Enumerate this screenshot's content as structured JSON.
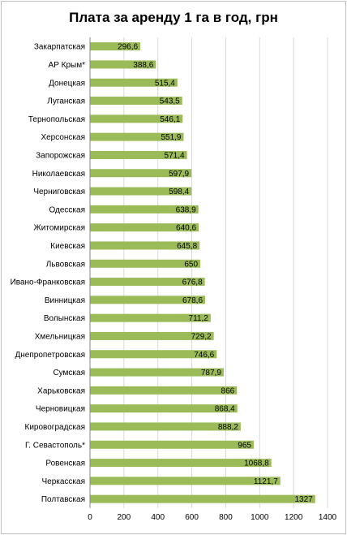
{
  "chart_data": {
    "type": "bar",
    "orientation": "horizontal",
    "title": "Плата за аренду 1 га в год, грн",
    "xlabel": "",
    "ylabel": "",
    "xlim": [
      0,
      1400
    ],
    "x_ticks": [
      "0",
      "200",
      "400",
      "600",
      "800",
      "1000",
      "1200",
      "1400"
    ],
    "grid": true,
    "legend": "none",
    "bar_color": "#9bbb59",
    "categories": [
      "Закарпатская",
      "АР Крым*",
      "Донецкая",
      "Луганская",
      "Тернопольская",
      "Херсонская",
      "Запорожская",
      "Николаевская",
      "Черниговская",
      "Одесская",
      "Житомирская",
      "Киевская",
      "Львовская",
      "Ивано-Франковская",
      "Винницкая",
      "Волынская",
      "Хмельницкая",
      "Днепропетровская",
      "Сумская",
      "Харьковская",
      "Черновицкая",
      "Кировоградская",
      "Г. Севастополь*",
      "Ровенская",
      "Черкасская",
      "Полтавская"
    ],
    "values": [
      296.6,
      388.6,
      515.4,
      543.5,
      546.1,
      551.9,
      571.4,
      597.9,
      598.4,
      638.9,
      640.6,
      645.8,
      650,
      676.8,
      678.6,
      711.2,
      729.2,
      746.6,
      787.9,
      866,
      868.4,
      888.2,
      965,
      1068.8,
      1121.7,
      1327
    ],
    "value_labels": [
      "296,6",
      "388,6",
      "515,4",
      "543,5",
      "546,1",
      "551,9",
      "571,4",
      "597,9",
      "598,4",
      "638,9",
      "640,6",
      "645,8",
      "650",
      "676,8",
      "678,6",
      "711,2",
      "729,2",
      "746,6",
      "787,9",
      "866",
      "868,4",
      "888,2",
      "965",
      "1068,8",
      "1121,7",
      "1327"
    ]
  }
}
